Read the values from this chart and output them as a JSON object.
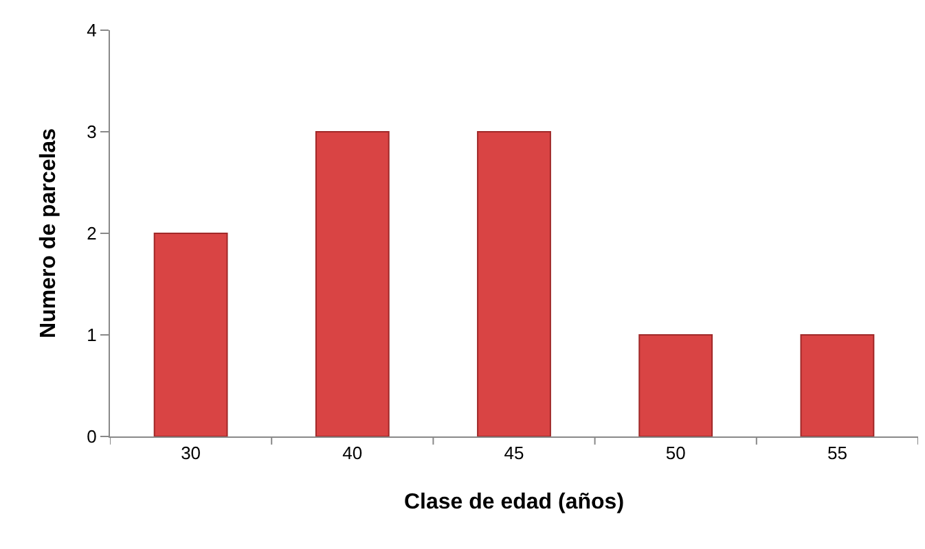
{
  "chart_data": {
    "type": "bar",
    "xlabel": "Clase de edad (años)",
    "ylabel": "Numero de parcelas",
    "categories": [
      "30",
      "40",
      "45",
      "50",
      "55"
    ],
    "values": [
      2,
      3,
      3,
      1,
      1
    ],
    "color": "#d94444",
    "ylim": [
      0,
      4
    ],
    "yticks": [
      0,
      1,
      2,
      3,
      4
    ],
    "grid": false
  }
}
